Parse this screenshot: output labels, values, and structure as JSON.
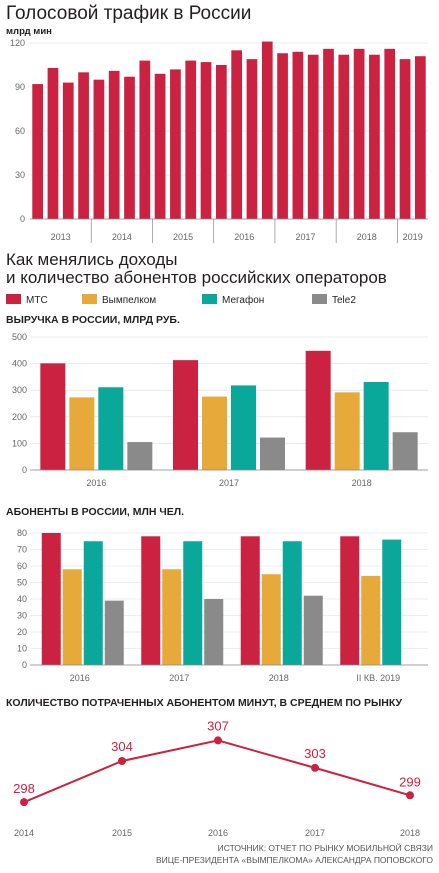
{
  "colors": {
    "mts": "#cc2241",
    "beeline": "#e6a93a",
    "megafon": "#0aa89b",
    "tele2": "#8a8a8a",
    "axis": "#888888",
    "grid": "#dddddd"
  },
  "traffic": {
    "title": "Голосовой трафик в России",
    "unit": "млрд мин",
    "chart_data": {
      "type": "bar",
      "title": "Голосовой трафик в России",
      "ylabel": "млрд мин",
      "ylim": [
        0,
        120
      ],
      "yticks": [
        0,
        30,
        60,
        90,
        120
      ],
      "year_groups": [
        {
          "label": "2013",
          "count": 4
        },
        {
          "label": "2014",
          "count": 4
        },
        {
          "label": "2015",
          "count": 4
        },
        {
          "label": "2016",
          "count": 4
        },
        {
          "label": "2017",
          "count": 4
        },
        {
          "label": "2018",
          "count": 4
        },
        {
          "label": "2019",
          "count": 2
        }
      ],
      "values": [
        92,
        103,
        93,
        100,
        95,
        101,
        97,
        108,
        99,
        102,
        108,
        107,
        105,
        115,
        109,
        121,
        113,
        114,
        112,
        116,
        112,
        116,
        112,
        116,
        109,
        111
      ]
    }
  },
  "operators_title_line1": "Как менялись доходы",
  "operators_title_line2": "и количество абонентов российских операторов",
  "legend": [
    "МТС",
    "Вымпелком",
    "Мегафон",
    "Tele2"
  ],
  "revenue": {
    "title": "ВЫРУЧКА В РОССИИ, МЛРД РУБ.",
    "chart_data": {
      "type": "bar",
      "title": "ВЫРУЧКА В РОССИИ, МЛРД РУБ.",
      "ylim": [
        0,
        500
      ],
      "yticks": [
        0,
        100,
        200,
        300,
        400,
        500
      ],
      "categories": [
        "2016",
        "2017",
        "2018"
      ],
      "series": [
        {
          "name": "МТС",
          "values": [
            401,
            413,
            448
          ]
        },
        {
          "name": "Вымпелком",
          "values": [
            273,
            276,
            292
          ]
        },
        {
          "name": "Мегафон",
          "values": [
            311,
            318,
            331
          ]
        },
        {
          "name": "Tele2",
          "values": [
            105,
            122,
            142
          ]
        }
      ]
    }
  },
  "subscribers": {
    "title": "АБОНЕНТЫ В РОССИИ, МЛН ЧЕЛ.",
    "chart_data": {
      "type": "bar",
      "title": "АБОНЕНТЫ В РОССИИ, МЛН ЧЕЛ.",
      "ylim": [
        0,
        80
      ],
      "yticks": [
        0,
        10,
        20,
        30,
        40,
        50,
        60,
        70,
        80
      ],
      "categories": [
        "2016",
        "2017",
        "2018",
        "II КВ. 2019"
      ],
      "series": [
        {
          "name": "МТС",
          "values": [
            80,
            78,
            78,
            78
          ]
        },
        {
          "name": "Вымпелком",
          "values": [
            58,
            58,
            55,
            54
          ]
        },
        {
          "name": "Мегафон",
          "values": [
            75,
            75,
            75,
            76
          ]
        },
        {
          "name": "Tele2",
          "values": [
            39,
            40,
            42,
            null
          ]
        }
      ]
    }
  },
  "minutes": {
    "title": "КОЛИЧЕСТВО ПОТРАЧЕННЫХ АБОНЕНТОМ МИНУТ, В СРЕДНЕМ ПО РЫНКУ",
    "chart_data": {
      "type": "line",
      "title": "КОЛИЧЕСТВО ПОТРАЧЕННЫХ АБОНЕНТОМ МИНУТ, В СРЕДНЕМ ПО РЫНКУ",
      "x": [
        "2014",
        "2015",
        "2016",
        "2017",
        "2018"
      ],
      "values": [
        298,
        304,
        307,
        303,
        299
      ]
    }
  },
  "source_line1": "ИСТОЧНИК: ОТЧЕТ ПО РЫНКУ МОБИЛЬНОЙ СВЯЗИ",
  "source_line2": "ВИЦЕ-ПРЕЗИДЕНТА «ВЫМПЕЛКОМА» АЛЕКСАНДРА ПОПОВСКОГО"
}
